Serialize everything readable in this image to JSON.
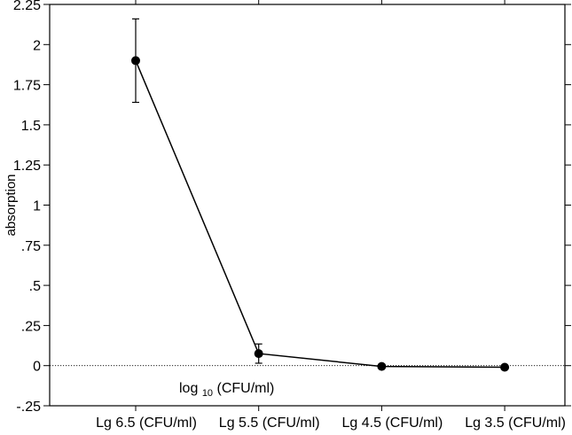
{
  "chart_data": {
    "type": "line",
    "title": "",
    "xlabel": "",
    "ylabel": "absorption",
    "categories": [
      "Lg 6.5 (CFU/ml)",
      "Lg 5.5 (CFU/ml)",
      "Lg 4.5 (CFU/ml)",
      "Lg 3.5 (CFU/ml)"
    ],
    "series": [
      {
        "values": [
          1.9,
          0.075,
          -0.005,
          -0.01
        ],
        "error": [
          0.26,
          0.06,
          0,
          0
        ]
      }
    ],
    "ylim": [
      -0.25,
      2.25
    ],
    "yticks": [
      -0.25,
      0,
      0.25,
      0.5,
      0.75,
      1,
      1.25,
      1.5,
      1.75,
      2,
      2.25
    ],
    "ytick_labels": [
      "-.25",
      "0",
      ".25",
      ".5",
      ".75",
      "1",
      "1.25",
      "1.5",
      "1.75",
      "2",
      "2.25"
    ],
    "reference_line": {
      "y": 0,
      "style": "dotted"
    },
    "annotation": {
      "prefix": "log",
      "subscript": "10",
      "suffix": " (CFU/ml)"
    },
    "grid": false,
    "legend": "none",
    "colors": {
      "line": "#000000",
      "marker": "#000000",
      "axis": "#000000"
    }
  }
}
